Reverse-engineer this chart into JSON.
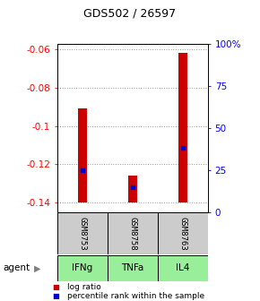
{
  "title": "GDS502 / 26597",
  "samples": [
    "GSM8753",
    "GSM8758",
    "GSM8763"
  ],
  "agents": [
    "IFNg",
    "TNFa",
    "IL4"
  ],
  "log_ratios": [
    -0.091,
    -0.126,
    -0.062
  ],
  "bar_bottom": -0.14,
  "percentile_ranks": [
    25,
    15,
    38
  ],
  "ylim_left": [
    -0.145,
    -0.057
  ],
  "ylim_right": [
    0,
    100
  ],
  "left_ticks": [
    -0.06,
    -0.08,
    -0.1,
    -0.12,
    -0.14
  ],
  "right_ticks": [
    0,
    25,
    50,
    75,
    100
  ],
  "bar_color": "#cc0000",
  "bar_width": 0.18,
  "percentile_color": "#0000cc",
  "grid_color": "#999999",
  "agent_bg_color": "#99ee99",
  "sample_bg_color": "#cccccc",
  "legend_log_ratio_color": "#cc0000",
  "legend_percentile_color": "#0000cc",
  "title_fontsize": 9,
  "tick_fontsize": 7.5,
  "label_fontsize": 7.5,
  "legend_fontsize": 6.5
}
